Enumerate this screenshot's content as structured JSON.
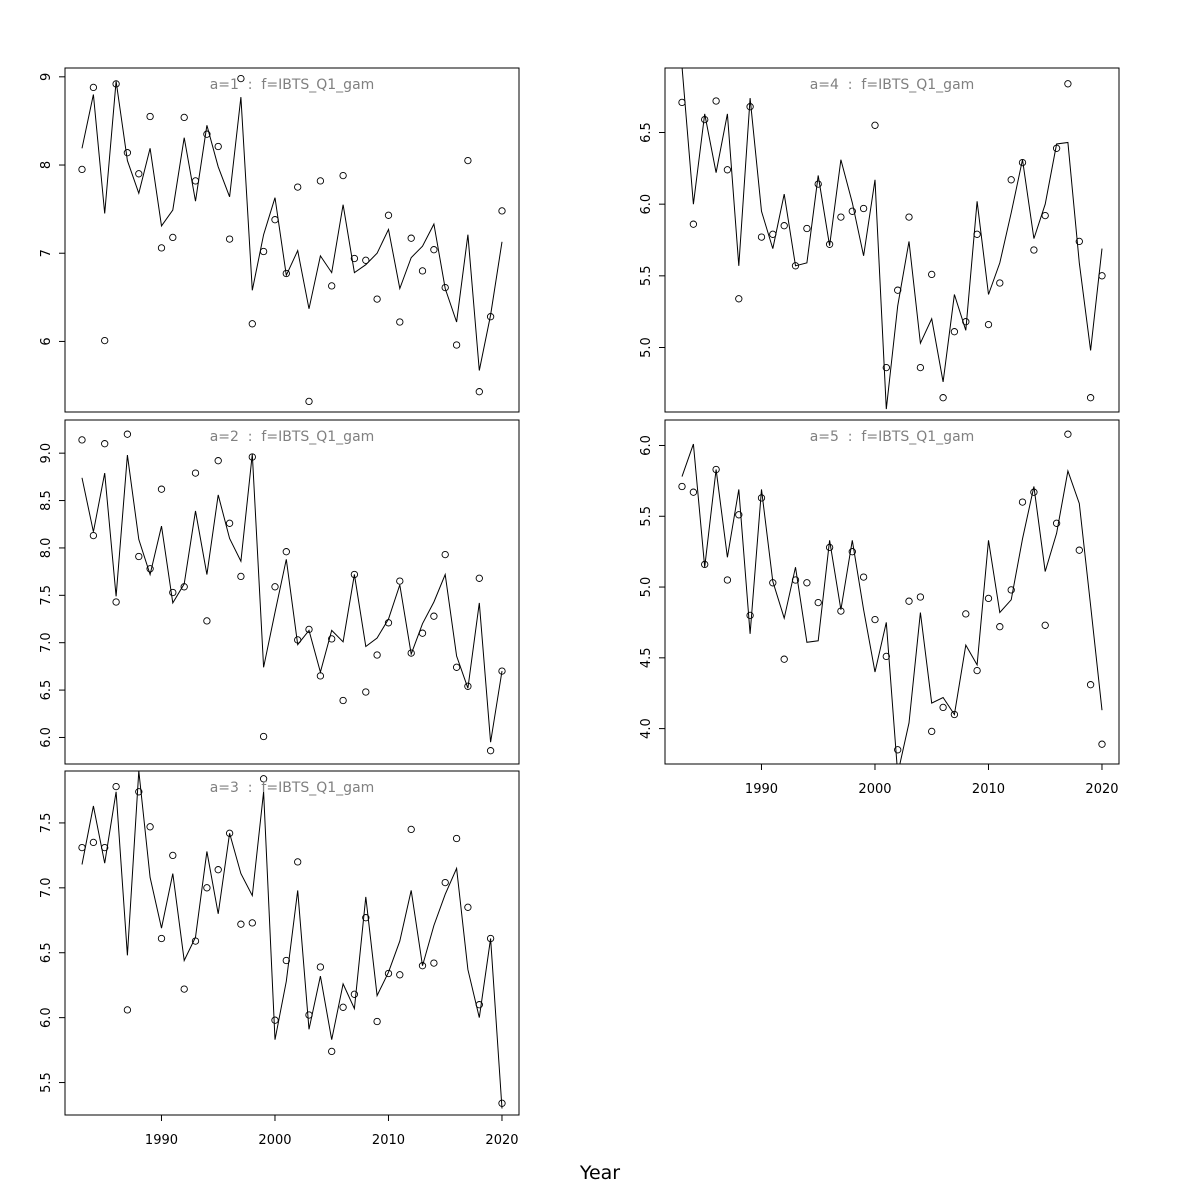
{
  "figure": {
    "xlabel": "Year"
  },
  "chart_data": [
    {
      "type": "line",
      "title": "a=1  :  f=IBTS_Q1_gam",
      "xlabel": "",
      "ylabel": "",
      "xlim": [
        1981.5,
        2021.5
      ],
      "ylim": [
        5.2,
        9.1
      ],
      "yticks": [
        "6",
        "7",
        "8",
        "9"
      ],
      "xticks": [],
      "x": [
        1983,
        1984,
        1985,
        1986,
        1987,
        1988,
        1989,
        1990,
        1991,
        1992,
        1993,
        1994,
        1995,
        1996,
        1997,
        1998,
        1999,
        2000,
        2001,
        2002,
        2003,
        2004,
        2005,
        2006,
        2007,
        2008,
        2009,
        2010,
        2011,
        2012,
        2013,
        2014,
        2015,
        2016,
        2017,
        2018,
        2019,
        2020
      ],
      "series": [
        {
          "kind": "line",
          "values": [
            8.19,
            8.8,
            7.45,
            8.95,
            8.05,
            7.68,
            8.19,
            7.31,
            7.49,
            8.31,
            7.59,
            8.45,
            7.98,
            7.64,
            8.77,
            6.58,
            7.21,
            7.63,
            6.75,
            7.03,
            6.37,
            6.97,
            6.78,
            7.55,
            6.78,
            6.87,
            7.0,
            7.27,
            6.6,
            6.95,
            7.08,
            7.33,
            6.6,
            6.22,
            7.21,
            5.67,
            6.3,
            7.13
          ]
        },
        {
          "kind": "points",
          "values": [
            7.95,
            8.88,
            6.01,
            8.92,
            8.14,
            7.9,
            8.55,
            7.06,
            7.18,
            8.54,
            7.82,
            8.35,
            8.21,
            7.16,
            8.98,
            6.2,
            7.02,
            7.38,
            6.77,
            7.75,
            5.32,
            7.82,
            6.63,
            7.88,
            6.94,
            6.92,
            6.48,
            7.43,
            6.22,
            7.17,
            6.8,
            7.04,
            6.61,
            5.96,
            8.05,
            5.43,
            6.28,
            7.48
          ]
        }
      ]
    },
    {
      "type": "line",
      "title": "a=2  :  f=IBTS_Q1_gam",
      "xlabel": "",
      "ylabel": "",
      "xlim": [
        1981.5,
        2021.5
      ],
      "ylim": [
        5.72,
        9.35
      ],
      "yticks": [
        "6.0",
        "6.5",
        "7.0",
        "7.5",
        "8.0",
        "8.5",
        "9.0"
      ],
      "xticks": [],
      "x": [
        1983,
        1984,
        1985,
        1986,
        1987,
        1988,
        1989,
        1990,
        1991,
        1992,
        1993,
        1994,
        1995,
        1996,
        1997,
        1998,
        1999,
        2000,
        2001,
        2002,
        2003,
        2004,
        2005,
        2006,
        2007,
        2008,
        2009,
        2010,
        2011,
        2012,
        2013,
        2014,
        2015,
        2016,
        2017,
        2018,
        2019,
        2020
      ],
      "series": [
        {
          "kind": "line",
          "values": [
            8.74,
            8.17,
            8.79,
            7.49,
            8.98,
            8.09,
            7.72,
            8.23,
            7.42,
            7.62,
            8.39,
            7.72,
            8.56,
            8.1,
            7.86,
            8.99,
            6.74,
            7.32,
            7.88,
            6.98,
            7.13,
            6.69,
            7.13,
            7.01,
            7.72,
            6.96,
            7.05,
            7.25,
            7.61,
            6.88,
            7.2,
            7.43,
            7.72,
            6.86,
            6.52,
            7.42,
            5.95,
            6.7
          ]
        },
        {
          "kind": "points",
          "values": [
            9.14,
            8.13,
            9.1,
            7.43,
            9.2,
            7.91,
            7.78,
            8.62,
            7.53,
            7.59,
            8.79,
            7.23,
            8.92,
            8.26,
            7.7,
            8.96,
            6.01,
            7.59,
            7.96,
            7.03,
            7.14,
            6.65,
            7.04,
            6.39,
            7.72,
            6.48,
            6.87,
            7.21,
            7.65,
            6.89,
            7.1,
            7.28,
            7.93,
            6.74,
            6.54,
            7.68,
            5.86,
            6.7
          ]
        }
      ]
    },
    {
      "type": "line",
      "title": "a=3  :  f=IBTS_Q1_gam",
      "xlabel": "",
      "ylabel": "",
      "xlim": [
        1981.5,
        2021.5
      ],
      "ylim": [
        5.25,
        7.9
      ],
      "yticks": [
        "5.5",
        "6.0",
        "6.5",
        "7.0",
        "7.5"
      ],
      "xticks": [
        "1990",
        "2000",
        "2010",
        "2020"
      ],
      "x": [
        1983,
        1984,
        1985,
        1986,
        1987,
        1988,
        1989,
        1990,
        1991,
        1992,
        1993,
        1994,
        1995,
        1996,
        1997,
        1998,
        1999,
        2000,
        2001,
        2002,
        2003,
        2004,
        2005,
        2006,
        2007,
        2008,
        2009,
        2010,
        2011,
        2012,
        2013,
        2014,
        2015,
        2016,
        2017,
        2018,
        2019,
        2020
      ],
      "series": [
        {
          "kind": "line",
          "values": [
            7.18,
            7.63,
            7.19,
            7.74,
            6.48,
            7.9,
            7.08,
            6.69,
            7.11,
            6.44,
            6.62,
            7.28,
            6.8,
            7.42,
            7.11,
            6.94,
            7.74,
            5.83,
            6.28,
            6.98,
            5.91,
            6.32,
            5.83,
            6.26,
            6.07,
            6.93,
            6.17,
            6.35,
            6.59,
            6.98,
            6.4,
            6.71,
            6.95,
            7.15,
            6.37,
            6.0,
            6.61,
            5.3
          ]
        },
        {
          "kind": "points",
          "values": [
            7.31,
            7.35,
            7.31,
            7.78,
            6.06,
            7.74,
            7.47,
            6.61,
            7.25,
            6.22,
            6.59,
            7.0,
            7.14,
            7.42,
            6.72,
            6.73,
            7.84,
            5.98,
            6.44,
            7.2,
            6.02,
            6.39,
            5.74,
            6.08,
            6.18,
            6.77,
            5.97,
            6.34,
            6.33,
            7.45,
            6.4,
            6.42,
            7.04,
            7.38,
            6.85,
            6.1,
            6.61,
            5.34
          ]
        }
      ]
    },
    {
      "type": "line",
      "title": "a=4  :  f=IBTS_Q1_gam",
      "xlabel": "",
      "ylabel": "",
      "xlim": [
        1981.5,
        2021.5
      ],
      "ylim": [
        4.55,
        6.95
      ],
      "yticks": [
        "5.0",
        "5.5",
        "6.0",
        "6.5"
      ],
      "xticks": [],
      "x": [
        1983,
        1984,
        1985,
        1986,
        1987,
        1988,
        1989,
        1990,
        1991,
        1992,
        1993,
        1994,
        1995,
        1996,
        1997,
        1998,
        1999,
        2000,
        2001,
        2002,
        2003,
        2004,
        2005,
        2006,
        2007,
        2008,
        2009,
        2010,
        2011,
        2012,
        2013,
        2014,
        2015,
        2016,
        2017,
        2018,
        2019,
        2020
      ],
      "series": [
        {
          "kind": "line",
          "values": [
            6.96,
            6.0,
            6.63,
            6.22,
            6.63,
            5.57,
            6.74,
            5.95,
            5.69,
            6.07,
            5.57,
            5.59,
            6.2,
            5.71,
            6.31,
            6.01,
            5.64,
            6.17,
            4.57,
            5.29,
            5.74,
            5.03,
            5.2,
            4.76,
            5.37,
            5.12,
            6.02,
            5.37,
            5.59,
            5.94,
            6.31,
            5.76,
            6.0,
            6.42,
            6.43,
            5.59,
            4.98,
            5.69
          ]
        },
        {
          "kind": "points",
          "values": [
            6.71,
            5.86,
            6.59,
            6.72,
            6.24,
            5.34,
            6.68,
            5.77,
            5.79,
            5.85,
            5.57,
            5.83,
            6.14,
            5.72,
            5.91,
            5.95,
            5.97,
            6.55,
            4.86,
            5.4,
            5.91,
            4.86,
            5.51,
            4.65,
            5.11,
            5.18,
            5.79,
            5.16,
            5.45,
            6.17,
            6.29,
            5.68,
            5.92,
            6.39,
            6.84,
            5.74,
            4.65,
            5.5
          ]
        }
      ]
    },
    {
      "type": "line",
      "title": "a=5  :  f=IBTS_Q1_gam",
      "xlabel": "",
      "ylabel": "",
      "xlim": [
        1981.5,
        2021.5
      ],
      "ylim": [
        3.75,
        6.18
      ],
      "yticks": [
        "4.0",
        "4.5",
        "5.0",
        "5.5",
        "6.0"
      ],
      "xticks": [
        "1990",
        "2000",
        "2010",
        "2020"
      ],
      "x": [
        1983,
        1984,
        1985,
        1986,
        1987,
        1988,
        1989,
        1990,
        1991,
        1992,
        1993,
        1994,
        1995,
        1996,
        1997,
        1998,
        1999,
        2000,
        2001,
        2002,
        2003,
        2004,
        2005,
        2006,
        2007,
        2008,
        2009,
        2010,
        2011,
        2012,
        2013,
        2014,
        2015,
        2016,
        2017,
        2018,
        2019,
        2020
      ],
      "series": [
        {
          "kind": "line",
          "values": [
            5.78,
            6.01,
            5.14,
            5.83,
            5.21,
            5.69,
            4.67,
            5.69,
            5.04,
            4.78,
            5.14,
            4.61,
            4.62,
            5.33,
            4.84,
            5.33,
            4.84,
            4.4,
            4.75,
            3.68,
            4.04,
            4.82,
            4.18,
            4.22,
            4.1,
            4.59,
            4.45,
            5.33,
            4.82,
            4.91,
            5.34,
            5.71,
            5.11,
            5.38,
            5.82,
            5.59,
            4.87,
            4.13
          ]
        },
        {
          "kind": "points",
          "values": [
            5.71,
            5.67,
            5.16,
            5.83,
            5.05,
            5.51,
            4.8,
            5.63,
            5.03,
            4.49,
            5.05,
            5.03,
            4.89,
            5.28,
            4.83,
            5.25,
            5.07,
            4.77,
            4.51,
            3.85,
            4.9,
            4.93,
            3.98,
            4.15,
            4.1,
            4.81,
            4.41,
            4.92,
            4.72,
            4.98,
            5.6,
            5.67,
            4.73,
            5.45,
            6.08,
            5.26,
            4.31,
            3.89
          ]
        }
      ]
    }
  ]
}
